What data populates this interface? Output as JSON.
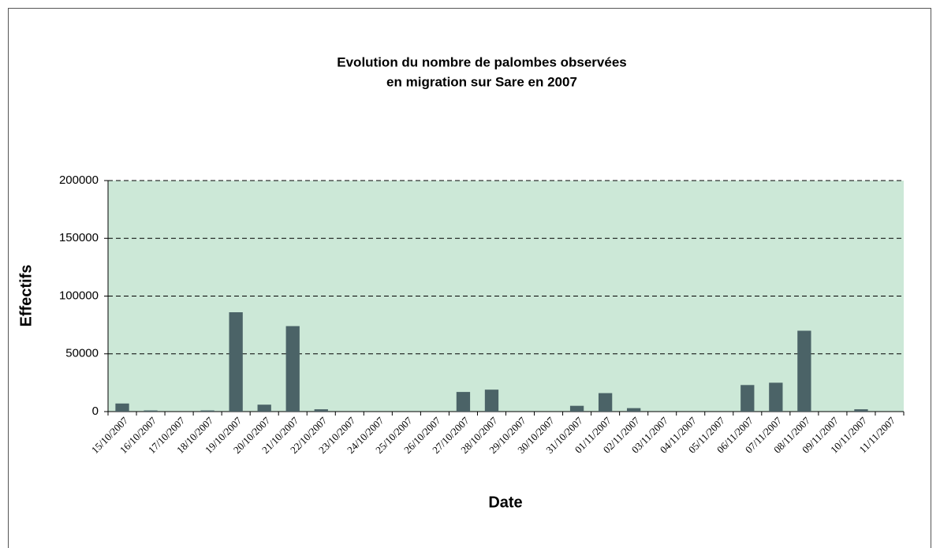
{
  "chart_data": {
    "type": "bar",
    "title": [
      "Evolution du nombre de palombes observées",
      "en migration sur Sare en 2007"
    ],
    "xlabel": "Date",
    "ylabel": "Effectifs",
    "categories": [
      "15/10/2007",
      "16/10/2007",
      "17/10/2007",
      "18/10/2007",
      "19/10/2007",
      "20/10/2007",
      "21/10/2007",
      "22/10/2007",
      "23/10/2007",
      "24/10/2007",
      "25/10/2007",
      "26/10/2007",
      "27/10/2007",
      "28/10/2007",
      "29/10/2007",
      "30/10/2007",
      "31/10/2007",
      "01/11/2007",
      "02/11/2007",
      "03/11/2007",
      "04/11/2007",
      "05/11/2007",
      "06/11/2007",
      "07/11/2007",
      "08/11/2007",
      "09/11/2007",
      "10/11/2007",
      "11/11/2007"
    ],
    "values": [
      7000,
      1000,
      0,
      1000,
      86000,
      6000,
      74000,
      2000,
      0,
      0,
      0,
      0,
      17000,
      19000,
      0,
      0,
      5000,
      16000,
      3000,
      0,
      0,
      0,
      23000,
      25000,
      70000,
      0,
      2000,
      0
    ],
    "color": "#4b6367",
    "background": "#cce8d7",
    "ylim": [
      0,
      200000
    ],
    "yticks": [
      0,
      50000,
      100000,
      150000,
      200000
    ],
    "grid": true
  }
}
